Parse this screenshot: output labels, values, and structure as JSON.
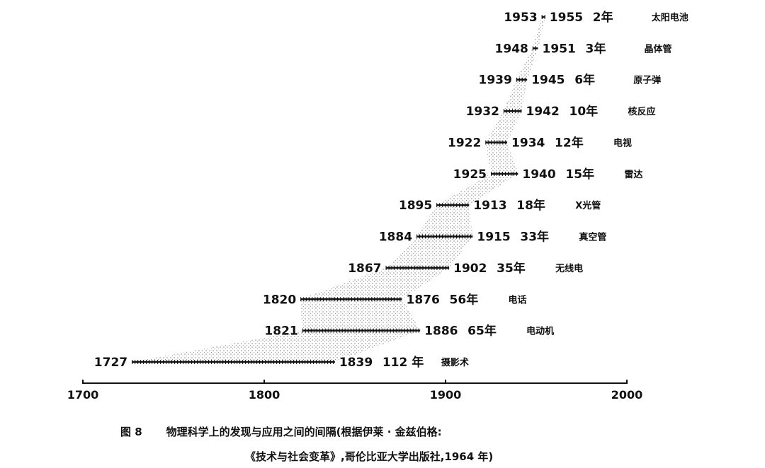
{
  "chart_data": {
    "type": "range",
    "xlim": [
      1700,
      2000
    ],
    "xticks": [
      1700,
      1800,
      1900,
      2000
    ],
    "rows": [
      {
        "discovery": 1727,
        "application": 1839,
        "years": 112,
        "interval_label": "112 年",
        "invention": "摄影术"
      },
      {
        "discovery": 1821,
        "application": 1886,
        "years": 65,
        "interval_label": "65年",
        "invention": "电动机"
      },
      {
        "discovery": 1820,
        "application": 1876,
        "years": 56,
        "interval_label": "56年",
        "invention": "电话"
      },
      {
        "discovery": 1867,
        "application": 1902,
        "years": 35,
        "interval_label": "35年",
        "invention": "无线电"
      },
      {
        "discovery": 1884,
        "application": 1915,
        "years": 33,
        "interval_label": "33年",
        "invention": "真空管"
      },
      {
        "discovery": 1895,
        "application": 1913,
        "years": 18,
        "interval_label": "18年",
        "invention": "X光管"
      },
      {
        "discovery": 1925,
        "application": 1940,
        "years": 15,
        "interval_label": "15年",
        "invention": "雷达"
      },
      {
        "discovery": 1922,
        "application": 1934,
        "years": 12,
        "interval_label": "12年",
        "invention": "电视"
      },
      {
        "discovery": 1932,
        "application": 1942,
        "years": 10,
        "interval_label": "10年",
        "invention": "核反应"
      },
      {
        "discovery": 1939,
        "application": 1945,
        "years": 6,
        "interval_label": "6年",
        "invention": "原子弹"
      },
      {
        "discovery": 1948,
        "application": 1951,
        "years": 3,
        "interval_label": "3年",
        "invention": "晶体管"
      },
      {
        "discovery": 1953,
        "application": 1955,
        "years": 2,
        "interval_label": "2年",
        "invention": "太阳电池"
      }
    ]
  },
  "caption": {
    "figure_number": "图 8",
    "line1": "物理科学上的发现与应用之间的间隔(根据伊莱 · 金兹伯格:",
    "line2": "《技术与社会变革》,哥伦比亚大学出版社,1964 年)"
  }
}
